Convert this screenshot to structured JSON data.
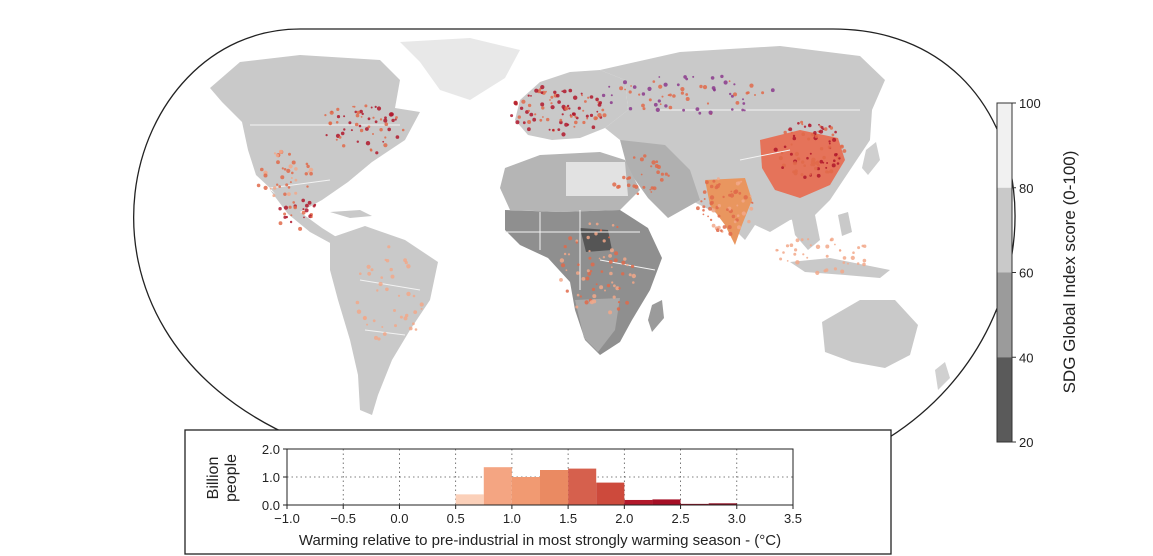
{
  "chart_data": [
    {
      "type": "map",
      "colorbar": {
        "label": "SDG Global Index score (0-100)",
        "ticks": [
          "100",
          "80",
          "60",
          "40",
          "20"
        ],
        "range": [
          20,
          100
        ],
        "bands": [
          {
            "from": 80,
            "to": 100,
            "color": "#f1f1f1"
          },
          {
            "from": 60,
            "to": 80,
            "color": "#c9c9c9"
          },
          {
            "from": 40,
            "to": 60,
            "color": "#9b9b9b"
          },
          {
            "from": 20,
            "to": 40,
            "color": "#5a5a5a"
          }
        ]
      },
      "colors": {
        "ocean": "#ffffff",
        "outline": "#222222",
        "border": "#f2f2f2",
        "hotspot_light": "#f2a88a",
        "hotspot_mid": "#e06a4a",
        "hotspot_dark": "#b0182b",
        "hotspot_purple": "#8b3a8c"
      }
    },
    {
      "type": "bar",
      "ylabel": "Billion\npeople",
      "xlabel": "Warming relative to pre-industrial in most strongly warming season - (°C)",
      "xlim": [
        -1.0,
        3.5
      ],
      "ylim": [
        0.0,
        2.0
      ],
      "xticks": [
        "−1.0",
        "−0.5",
        "0.0",
        "0.5",
        "1.0",
        "1.5",
        "2.0",
        "2.5",
        "3.0",
        "3.5"
      ],
      "yticks": [
        "0.0",
        "1.0",
        "2.0"
      ],
      "grid": "dotted",
      "bins": [
        {
          "x0": 0.5,
          "x1": 0.75,
          "value": 0.38,
          "color": "#fbd0b9"
        },
        {
          "x0": 0.75,
          "x1": 1.0,
          "value": 1.35,
          "color": "#f4a582"
        },
        {
          "x0": 1.0,
          "x1": 1.25,
          "value": 1.0,
          "color": "#f19a72"
        },
        {
          "x0": 1.25,
          "x1": 1.5,
          "value": 1.25,
          "color": "#ea8a62"
        },
        {
          "x0": 1.5,
          "x1": 1.75,
          "value": 1.3,
          "color": "#d6604d"
        },
        {
          "x0": 1.75,
          "x1": 2.0,
          "value": 0.8,
          "color": "#cd4a3c"
        },
        {
          "x0": 2.0,
          "x1": 2.25,
          "value": 0.18,
          "color": "#b2182b"
        },
        {
          "x0": 2.25,
          "x1": 2.5,
          "value": 0.2,
          "color": "#a50f25"
        },
        {
          "x0": 2.5,
          "x1": 2.75,
          "value": 0.04,
          "color": "#9b0d22"
        },
        {
          "x0": 2.75,
          "x1": 3.0,
          "value": 0.06,
          "color": "#8f0b1e"
        }
      ]
    }
  ]
}
